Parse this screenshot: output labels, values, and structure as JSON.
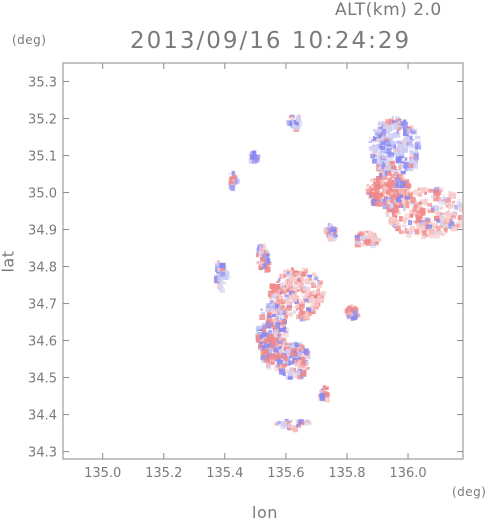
{
  "header": {
    "altitude_label": "ALT(km) 2.0",
    "timestamp": "2013/09/16 10:24:29"
  },
  "axes": {
    "y_unit": "(deg)",
    "x_unit": "(deg)",
    "x_label": "lon",
    "y_label": "lat"
  },
  "chart_data": {
    "type": "heatmap",
    "title": "2013/09/16 10:24:29",
    "xlabel": "lon",
    "ylabel": "lat",
    "xlim": [
      134.87,
      136.18
    ],
    "ylim": [
      34.28,
      35.35
    ],
    "x_ticks": [
      135.0,
      135.2,
      135.4,
      135.6,
      135.8,
      136.0
    ],
    "x_tick_labels": [
      "135.0",
      "135.2",
      "135.4",
      "135.6",
      "135.8",
      "136.0"
    ],
    "y_ticks": [
      34.3,
      34.4,
      34.5,
      34.6,
      34.7,
      34.8,
      34.9,
      35.0,
      35.1,
      35.2,
      35.3
    ],
    "y_tick_labels": [
      "34.3",
      "34.4",
      "34.5",
      "34.6",
      "34.7",
      "34.8",
      "34.9",
      "35.0",
      "35.1",
      "35.2",
      "35.3"
    ],
    "grid": false,
    "colors": {
      "positive": "#f08a8a",
      "negative": "#8a8af0",
      "positive_light": "#f8cccc",
      "negative_light": "#cfd0f5"
    },
    "clusters": [
      {
        "lon": 135.95,
        "lat": 35.13,
        "rx": 0.08,
        "ry": 0.08,
        "sign": -1,
        "strength": 0.5
      },
      {
        "lon": 136.05,
        "lat": 34.95,
        "rx": 0.13,
        "ry": 0.07,
        "sign": 1,
        "strength": 0.35
      },
      {
        "lon": 135.93,
        "lat": 35.01,
        "rx": 0.07,
        "ry": 0.05,
        "sign": 1,
        "strength": 0.8
      },
      {
        "lon": 135.63,
        "lat": 34.73,
        "rx": 0.09,
        "ry": 0.07,
        "sign": 1,
        "strength": 0.5
      },
      {
        "lon": 135.55,
        "lat": 34.62,
        "rx": 0.05,
        "ry": 0.09,
        "sign": 0,
        "strength": 0.7
      },
      {
        "lon": 135.62,
        "lat": 34.55,
        "rx": 0.05,
        "ry": 0.05,
        "sign": 0,
        "strength": 0.6
      },
      {
        "lon": 135.52,
        "lat": 34.83,
        "rx": 0.02,
        "ry": 0.04,
        "sign": 0,
        "strength": 0.6
      },
      {
        "lon": 135.62,
        "lat": 35.2,
        "rx": 0.02,
        "ry": 0.02,
        "sign": -1,
        "strength": 0.6
      },
      {
        "lon": 135.49,
        "lat": 35.1,
        "rx": 0.015,
        "ry": 0.015,
        "sign": -1,
        "strength": 0.7
      },
      {
        "lon": 135.42,
        "lat": 35.04,
        "rx": 0.012,
        "ry": 0.02,
        "sign": -1,
        "strength": 0.6
      },
      {
        "lon": 135.81,
        "lat": 34.68,
        "rx": 0.02,
        "ry": 0.02,
        "sign": 1,
        "strength": 0.7
      },
      {
        "lon": 135.72,
        "lat": 34.46,
        "rx": 0.015,
        "ry": 0.02,
        "sign": 1,
        "strength": 0.7
      },
      {
        "lon": 135.62,
        "lat": 34.38,
        "rx": 0.06,
        "ry": 0.01,
        "sign": 0,
        "strength": 0.4
      },
      {
        "lon": 135.38,
        "lat": 34.78,
        "rx": 0.02,
        "ry": 0.04,
        "sign": -1,
        "strength": 0.3
      },
      {
        "lon": 135.74,
        "lat": 34.9,
        "rx": 0.02,
        "ry": 0.02,
        "sign": 0,
        "strength": 0.4
      },
      {
        "lon": 135.86,
        "lat": 34.88,
        "rx": 0.04,
        "ry": 0.02,
        "sign": 1,
        "strength": 0.5
      }
    ]
  }
}
